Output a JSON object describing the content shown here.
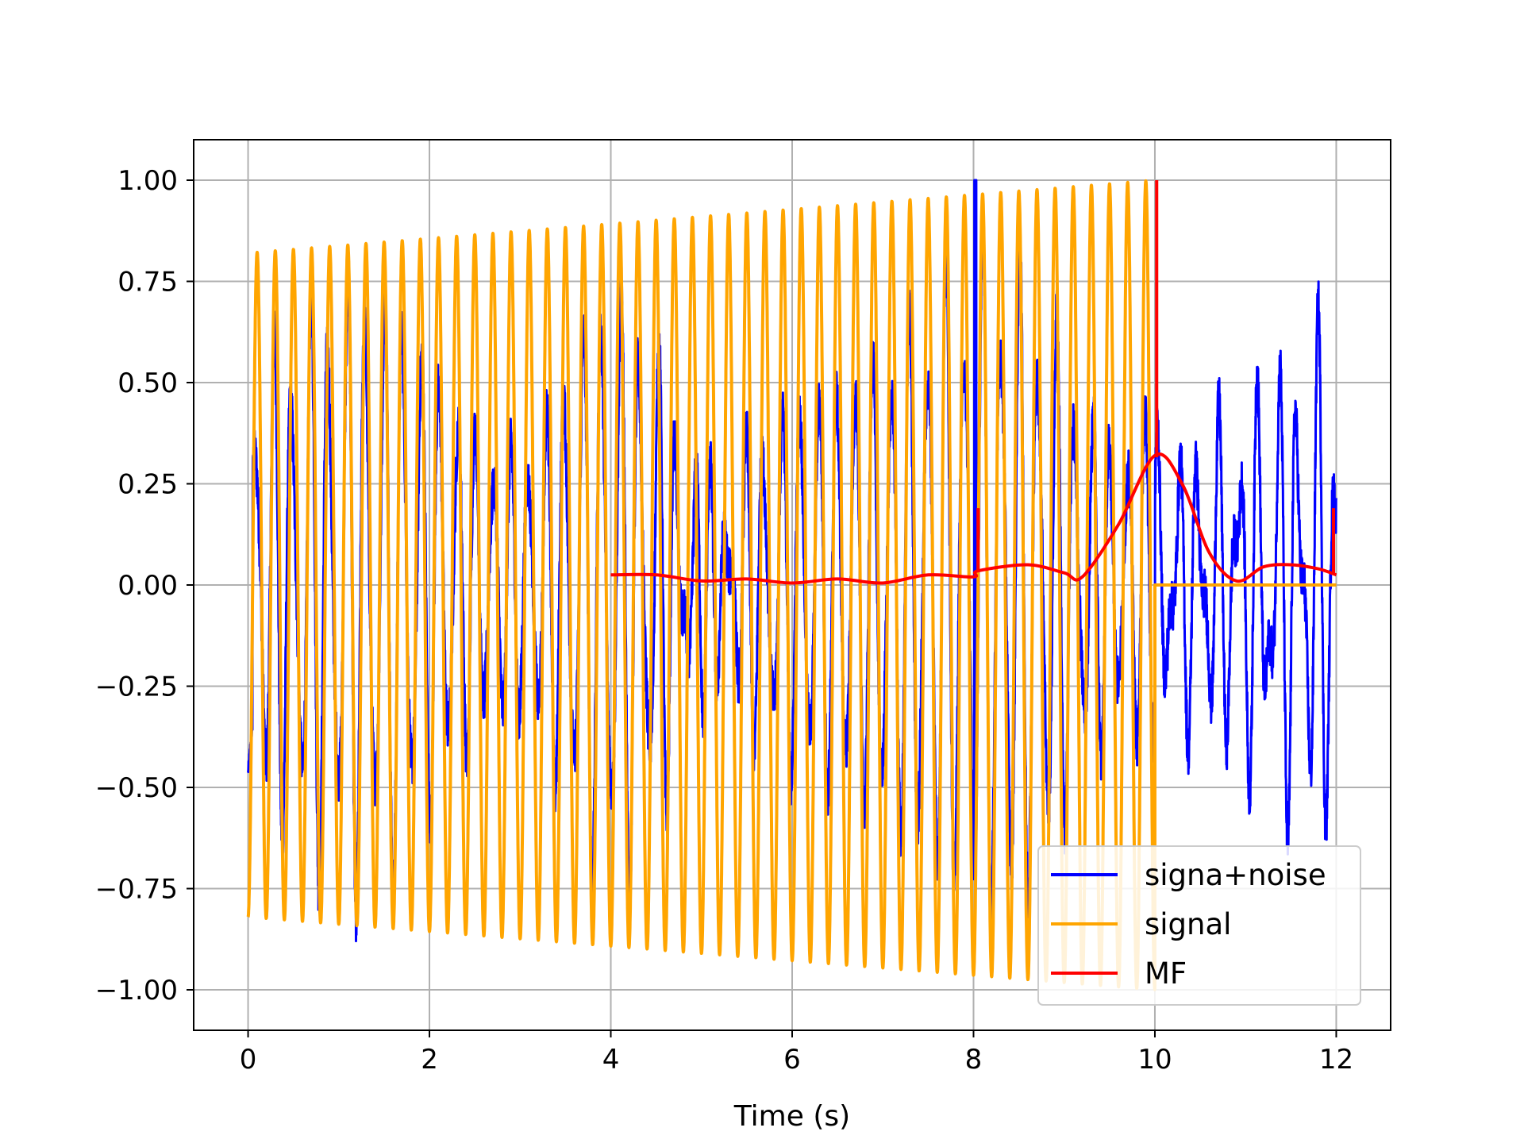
{
  "chart_data": {
    "type": "line",
    "title": "",
    "xlabel": "Time (s)",
    "ylabel": "",
    "xlim": [
      -0.6,
      12.6
    ],
    "ylim": [
      -1.1,
      1.1
    ],
    "grid": true,
    "legend_placement": "lower-right",
    "xticks": [
      0,
      2,
      4,
      6,
      8,
      10,
      12
    ],
    "xtick_labels": [
      "0",
      "2",
      "4",
      "6",
      "8",
      "10",
      "12"
    ],
    "yticks": [
      1.0,
      0.75,
      0.5,
      0.25,
      0.0,
      -0.25,
      -0.5,
      -0.75,
      -1.0
    ],
    "ytick_labels": [
      "1.00",
      "0.75",
      "0.50",
      "0.25",
      "0.00",
      "−0.25",
      "−0.50",
      "−0.75",
      "−1.00"
    ],
    "series": [
      {
        "name": "signa+noise",
        "color": "#0000ff",
        "x_range": [
          0,
          12
        ],
        "description_points": {
          "chirp_envelope_start": 0.4,
          "peak_at_8": 1.0,
          "tail_amplitude": 0.6
        }
      },
      {
        "name": "signal",
        "color": "#ffa500",
        "x_range": [
          0,
          12
        ],
        "amp_start": 0.82,
        "amp_end": 1.0,
        "cycles_per_second": 5,
        "active_until": 10,
        "zero_after": 10
      },
      {
        "name": "MF",
        "color": "#ff0000",
        "x": [
          4.0,
          4.5,
          5.0,
          5.5,
          6.0,
          6.5,
          7.0,
          7.5,
          8.0,
          8.05,
          8.6,
          9.0,
          9.2,
          9.6,
          10.0,
          10.3,
          10.6,
          10.9,
          11.2,
          11.5,
          11.8,
          12.0
        ],
        "y": [
          0.025,
          0.025,
          0.01,
          0.015,
          0.005,
          0.015,
          0.005,
          0.025,
          0.02,
          0.035,
          0.05,
          0.03,
          0.02,
          0.15,
          0.32,
          0.25,
          0.08,
          0.01,
          0.045,
          0.05,
          0.04,
          0.025
        ],
        "spikes": [
          {
            "x": 8.05,
            "y": 0.19
          },
          {
            "x": 10.02,
            "y": 1.0
          },
          {
            "x": 11.97,
            "y": 0.19
          }
        ]
      }
    ]
  }
}
